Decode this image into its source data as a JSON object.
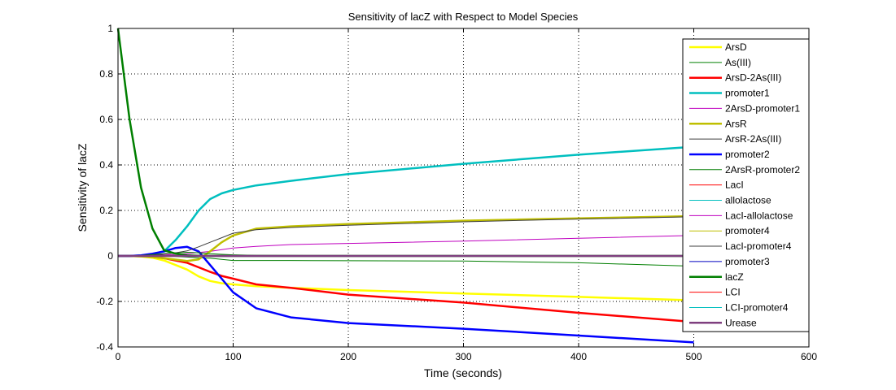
{
  "chart_data": {
    "type": "line",
    "title": "Sensitivity of lacZ with Respect to Model Species",
    "xlabel": "Time (seconds)",
    "ylabel": "Sensitivity of lacZ",
    "xlim": [
      0,
      600
    ],
    "ylim": [
      -0.4,
      1
    ],
    "xticks": [
      0,
      100,
      200,
      300,
      400,
      500,
      600
    ],
    "yticks": [
      -0.4,
      -0.2,
      0,
      0.2,
      0.4,
      0.6,
      0.8,
      1
    ],
    "ytick_labels": [
      "-0.4",
      "-0.2",
      "0",
      "0.2",
      "0.4",
      "0.6",
      "0.8",
      "1"
    ],
    "grid": true,
    "legend_position": "top-right",
    "x": [
      0,
      10,
      20,
      30,
      40,
      50,
      60,
      70,
      80,
      90,
      100,
      120,
      150,
      200,
      300,
      400,
      500
    ],
    "series": [
      {
        "name": "ArsD",
        "color": "#ffff00",
        "width": 2.5,
        "values": [
          0,
          0,
          -0.002,
          -0.008,
          -0.02,
          -0.04,
          -0.06,
          -0.09,
          -0.11,
          -0.12,
          -0.125,
          -0.133,
          -0.14,
          -0.15,
          -0.165,
          -0.18,
          -0.195
        ]
      },
      {
        "name": "As(III)",
        "color": "#007f00",
        "width": 1,
        "values": [
          0,
          0,
          0,
          0,
          0,
          -0.002,
          -0.005,
          -0.008,
          -0.01,
          -0.015,
          -0.02,
          -0.02,
          -0.02,
          -0.021,
          -0.022,
          -0.03,
          -0.045
        ]
      },
      {
        "name": "ArsD-2As(III)",
        "color": "#ff0000",
        "width": 2.5,
        "values": [
          0,
          0,
          0,
          -0.004,
          -0.01,
          -0.02,
          -0.03,
          -0.05,
          -0.07,
          -0.088,
          -0.1,
          -0.125,
          -0.14,
          -0.17,
          -0.205,
          -0.25,
          -0.29
        ]
      },
      {
        "name": "promoter1",
        "color": "#00bfbf",
        "width": 2.5,
        "values": [
          0,
          0,
          0.002,
          0.008,
          0.02,
          0.07,
          0.13,
          0.2,
          0.25,
          0.275,
          0.29,
          0.31,
          0.33,
          0.36,
          0.405,
          0.445,
          0.48
        ]
      },
      {
        "name": "2ArsD-promoter1",
        "color": "#bf00bf",
        "width": 1,
        "values": [
          0,
          0,
          0,
          0.002,
          0.004,
          0.007,
          0.01,
          0.015,
          0.02,
          0.028,
          0.035,
          0.042,
          0.05,
          0.055,
          0.065,
          0.078,
          0.09
        ]
      },
      {
        "name": "ArsR",
        "color": "#bfbf00",
        "width": 2.5,
        "values": [
          0,
          0,
          -0.002,
          -0.005,
          -0.01,
          -0.016,
          -0.022,
          -0.015,
          0.02,
          0.06,
          0.09,
          0.12,
          0.13,
          0.14,
          0.155,
          0.165,
          0.175
        ]
      },
      {
        "name": "ArsR-2As(III)",
        "color": "#3f3f3f",
        "width": 1,
        "values": [
          0,
          0,
          0,
          0,
          0,
          0,
          0,
          0,
          0,
          0,
          0,
          0,
          0,
          0,
          0,
          0,
          0
        ]
      },
      {
        "name": "promoter2",
        "color": "#0000ff",
        "width": 2.5,
        "values": [
          0,
          0,
          0.003,
          0.01,
          0.02,
          0.035,
          0.04,
          0.02,
          -0.04,
          -0.1,
          -0.16,
          -0.23,
          -0.27,
          -0.295,
          -0.32,
          -0.35,
          -0.38
        ]
      },
      {
        "name": "2ArsR-promoter2",
        "color": "#007f00",
        "width": 1,
        "values": [
          0,
          0,
          0.002,
          0.006,
          0.01,
          0.014,
          0.016,
          0.014,
          0.01,
          0.007,
          0.005,
          0.003,
          0.002,
          0.001,
          0,
          0,
          0
        ]
      },
      {
        "name": "LacI",
        "color": "#ff0000",
        "width": 1,
        "values": [
          0,
          0,
          0,
          0,
          0,
          0,
          0,
          0,
          0,
          0,
          0,
          0,
          0,
          0,
          0,
          0,
          0
        ]
      },
      {
        "name": "allolactose",
        "color": "#00bfbf",
        "width": 1,
        "values": [
          0,
          0,
          0,
          0,
          0,
          0,
          0,
          0,
          0,
          0,
          0,
          0,
          0,
          0,
          0,
          0,
          0
        ]
      },
      {
        "name": "LacI-allolactose",
        "color": "#bf00bf",
        "width": 1,
        "values": [
          0,
          0,
          0,
          0,
          0,
          0,
          0,
          0,
          0,
          0,
          0,
          0,
          0,
          0,
          0,
          0,
          0
        ]
      },
      {
        "name": "promoter4",
        "color": "#bfbf00",
        "width": 1,
        "values": [
          0,
          0,
          0,
          0,
          0,
          0,
          0,
          0,
          0,
          0,
          0,
          0,
          0,
          0,
          0,
          0,
          0
        ]
      },
      {
        "name": "LacI-promoter4",
        "color": "#3f3f3f",
        "width": 1,
        "values": [
          0,
          0,
          0,
          0.003,
          0.008,
          0.014,
          0.022,
          0.04,
          0.06,
          0.08,
          0.1,
          0.115,
          0.125,
          0.135,
          0.15,
          0.162,
          0.172
        ]
      },
      {
        "name": "promoter3",
        "color": "#0000bf",
        "width": 1,
        "values": [
          0,
          0,
          0,
          0,
          0,
          0,
          0,
          0,
          0,
          0,
          0,
          0,
          0,
          0,
          0,
          0,
          0
        ]
      },
      {
        "name": "lacZ",
        "color": "#007f00",
        "width": 2.5,
        "values": [
          1,
          0.6,
          0.3,
          0.12,
          0.025,
          0.01,
          0.003,
          0.001,
          0,
          0,
          0,
          0,
          0,
          0,
          0,
          0,
          0
        ]
      },
      {
        "name": "LCI",
        "color": "#ff0000",
        "width": 1,
        "values": [
          0,
          0,
          0,
          0,
          0,
          0,
          0,
          0,
          0,
          0,
          0,
          0,
          0,
          0,
          0,
          0,
          0
        ]
      },
      {
        "name": "LCI-promoter4",
        "color": "#00bfbf",
        "width": 1,
        "values": [
          0,
          0,
          0,
          0,
          0,
          0,
          0,
          0,
          0,
          0,
          0,
          0,
          0,
          0,
          0,
          0,
          0
        ]
      },
      {
        "name": "Urease",
        "color": "#7f3f7f",
        "width": 2.5,
        "values": [
          0,
          0,
          0,
          0,
          0,
          0,
          0,
          0,
          0,
          0,
          0,
          0,
          0,
          0,
          0,
          0,
          0
        ]
      }
    ]
  }
}
